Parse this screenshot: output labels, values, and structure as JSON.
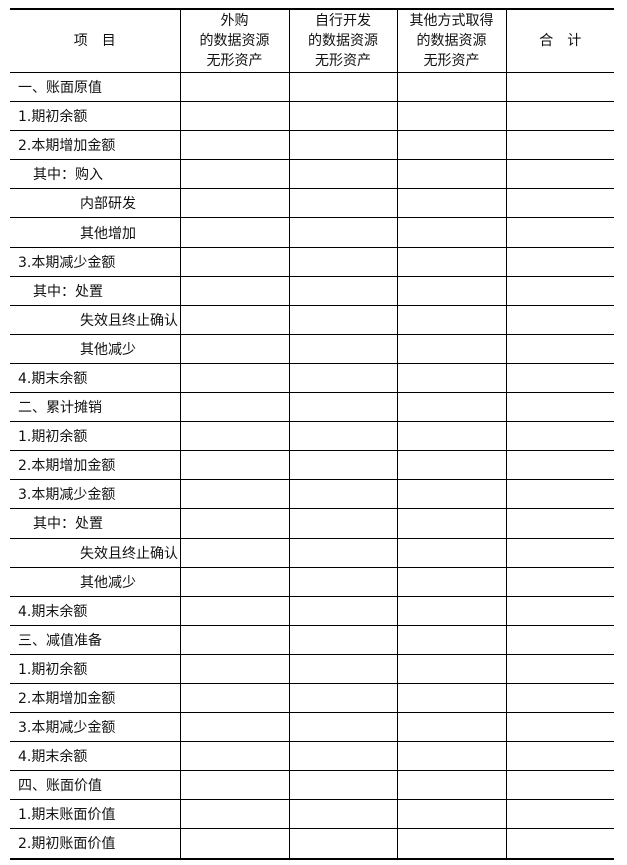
{
  "table": {
    "header": [
      [
        "项　目"
      ],
      [
        "外购",
        "的数据资源",
        "无形资产"
      ],
      [
        "自行开发",
        "的数据资源",
        "无形资产"
      ],
      [
        "其他方式取得",
        "的数据资源",
        "无形资产"
      ],
      [
        "合　计"
      ]
    ],
    "rows": [
      "一、账面原值",
      "1.期初余额",
      "2.本期增加金额",
      "其中：购入",
      "内部研发",
      "其他增加",
      "3.本期减少金额",
      "其中：处置",
      "失效且终止确认",
      "其他减少",
      "4.期末余额",
      "二、累计摊销",
      "1.期初余额",
      "2.本期增加金额",
      "3.本期减少金额",
      "其中：处置",
      "失效且终止确认",
      "其他减少",
      "4.期末余额",
      "三、减值准备",
      "1.期初余额",
      "2.本期增加金额",
      "3.本期减少金额",
      "4.期末余额",
      "四、账面价值",
      "1.期末账面价值",
      "2.期初账面价值"
    ]
  }
}
